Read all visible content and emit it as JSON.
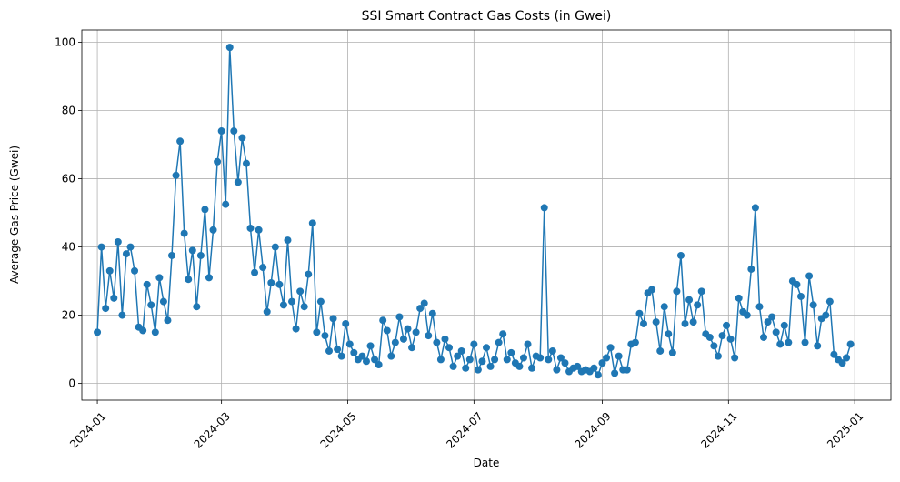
{
  "chart_data": {
    "type": "line",
    "title": "SSI Smart Contract Gas Costs (in Gwei)",
    "x_label": "Date",
    "y_label": "Average Gas Price (Gwei)",
    "color": "#1f77b4",
    "grid": true,
    "marker": "circle",
    "xlim": [
      -7.5,
      383.5
    ],
    "ylim": [
      -4.9,
      103.6
    ],
    "xticks": [
      {
        "value": 0,
        "label": "2024-01"
      },
      {
        "value": 60,
        "label": "2024-03"
      },
      {
        "value": 121,
        "label": "2024-05"
      },
      {
        "value": 182,
        "label": "2024-07"
      },
      {
        "value": 244,
        "label": "2024-09"
      },
      {
        "value": 305,
        "label": "2024-11"
      },
      {
        "value": 366,
        "label": "2025-01"
      }
    ],
    "yticks": [
      0,
      20,
      40,
      60,
      80,
      100
    ],
    "x": [
      0,
      2,
      4,
      6,
      8,
      10,
      12,
      14,
      16,
      18,
      20,
      22,
      24,
      26,
      28,
      30,
      32,
      34,
      36,
      38,
      40,
      42,
      44,
      46,
      48,
      50,
      52,
      54,
      56,
      58,
      60,
      62,
      64,
      66,
      68,
      70,
      72,
      74,
      76,
      78,
      80,
      82,
      84,
      86,
      88,
      90,
      92,
      94,
      96,
      98,
      100,
      102,
      104,
      106,
      108,
      110,
      112,
      114,
      116,
      118,
      120,
      122,
      124,
      126,
      128,
      130,
      132,
      134,
      136,
      138,
      140,
      142,
      144,
      146,
      148,
      150,
      152,
      154,
      156,
      158,
      160,
      162,
      164,
      166,
      168,
      170,
      172,
      174,
      176,
      178,
      180,
      182,
      184,
      186,
      188,
      190,
      192,
      194,
      196,
      198,
      200,
      202,
      204,
      206,
      208,
      210,
      212,
      214,
      216,
      218,
      220,
      222,
      224,
      226,
      228,
      230,
      232,
      234,
      236,
      238,
      240,
      242,
      244,
      246,
      248,
      250,
      252,
      254,
      256,
      258,
      260,
      262,
      264,
      266,
      268,
      270,
      272,
      274,
      276,
      278,
      280,
      282,
      284,
      286,
      288,
      290,
      292,
      294,
      296,
      298,
      300,
      302,
      304,
      306,
      308,
      310,
      312,
      314,
      316,
      318,
      320,
      322,
      324,
      326,
      328,
      330,
      332,
      334,
      336,
      338,
      340,
      342,
      344,
      346,
      348,
      350,
      352,
      354,
      356,
      358,
      360,
      362,
      364
    ],
    "values": [
      15,
      40,
      22,
      33,
      25,
      41.5,
      20,
      38,
      40,
      33,
      16.5,
      15.5,
      29,
      23,
      15,
      31,
      24,
      18.5,
      37.5,
      61,
      71,
      44,
      30.5,
      39,
      22.5,
      37.5,
      51,
      31,
      45,
      65,
      74,
      52.5,
      98.5,
      74,
      59,
      72,
      64.5,
      45.5,
      32.5,
      45,
      34,
      21,
      29.5,
      40,
      29,
      23,
      42,
      24,
      16,
      27,
      22.5,
      32,
      47,
      15,
      24,
      14,
      9.5,
      19,
      10,
      8,
      17.5,
      11.5,
      9,
      7,
      8,
      6.5,
      11,
      7,
      5.5,
      18.5,
      15.5,
      8,
      12,
      19.5,
      13,
      16,
      10.5,
      15,
      22,
      23.5,
      14,
      20.5,
      12,
      7,
      13,
      10.5,
      5,
      8,
      9.5,
      4.5,
      7,
      11.5,
      4,
      6.5,
      10.5,
      5,
      7,
      12,
      14.5,
      7,
      9,
      6,
      5,
      7.5,
      11.5,
      4.5,
      8,
      7.5,
      51.5,
      7,
      9.5,
      4,
      7.5,
      6,
      3.5,
      4.5,
      5,
      3.5,
      4,
      3.5,
      4.5,
      2.5,
      6,
      7.5,
      10.5,
      3,
      8,
      4,
      4,
      11.5,
      12,
      20.5,
      17.5,
      26.5,
      27.5,
      18,
      9.5,
      22.5,
      14.5,
      9,
      27,
      37.5,
      17.5,
      24.5,
      18,
      23,
      27,
      14.5,
      13.5,
      11,
      8,
      14,
      17,
      13,
      7.5,
      25,
      21,
      20,
      33.5,
      51.5,
      22.5,
      13.5,
      18,
      19.5,
      15,
      11.5,
      17,
      12,
      30,
      29,
      25.5,
      12,
      31.5,
      23,
      11,
      19,
      20,
      24,
      8.5,
      7,
      6,
      7.5,
      11.5
    ]
  }
}
